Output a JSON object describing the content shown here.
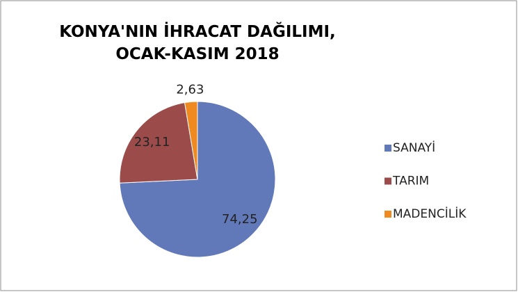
{
  "chart_data": {
    "type": "pie",
    "title": "KONYA'NIN İHRACAT DAĞILIMI, OCAK-KASIM 2018",
    "categories": [
      "SANAYİ",
      "TARIM",
      "MADENCİLİK"
    ],
    "values": [
      74.25,
      23.11,
      2.63
    ],
    "value_labels": [
      "74,25",
      "23,11",
      "2,63"
    ],
    "colors": [
      "#6178b9",
      "#9c4b4b",
      "#ee8a1f"
    ],
    "legend": "right"
  }
}
